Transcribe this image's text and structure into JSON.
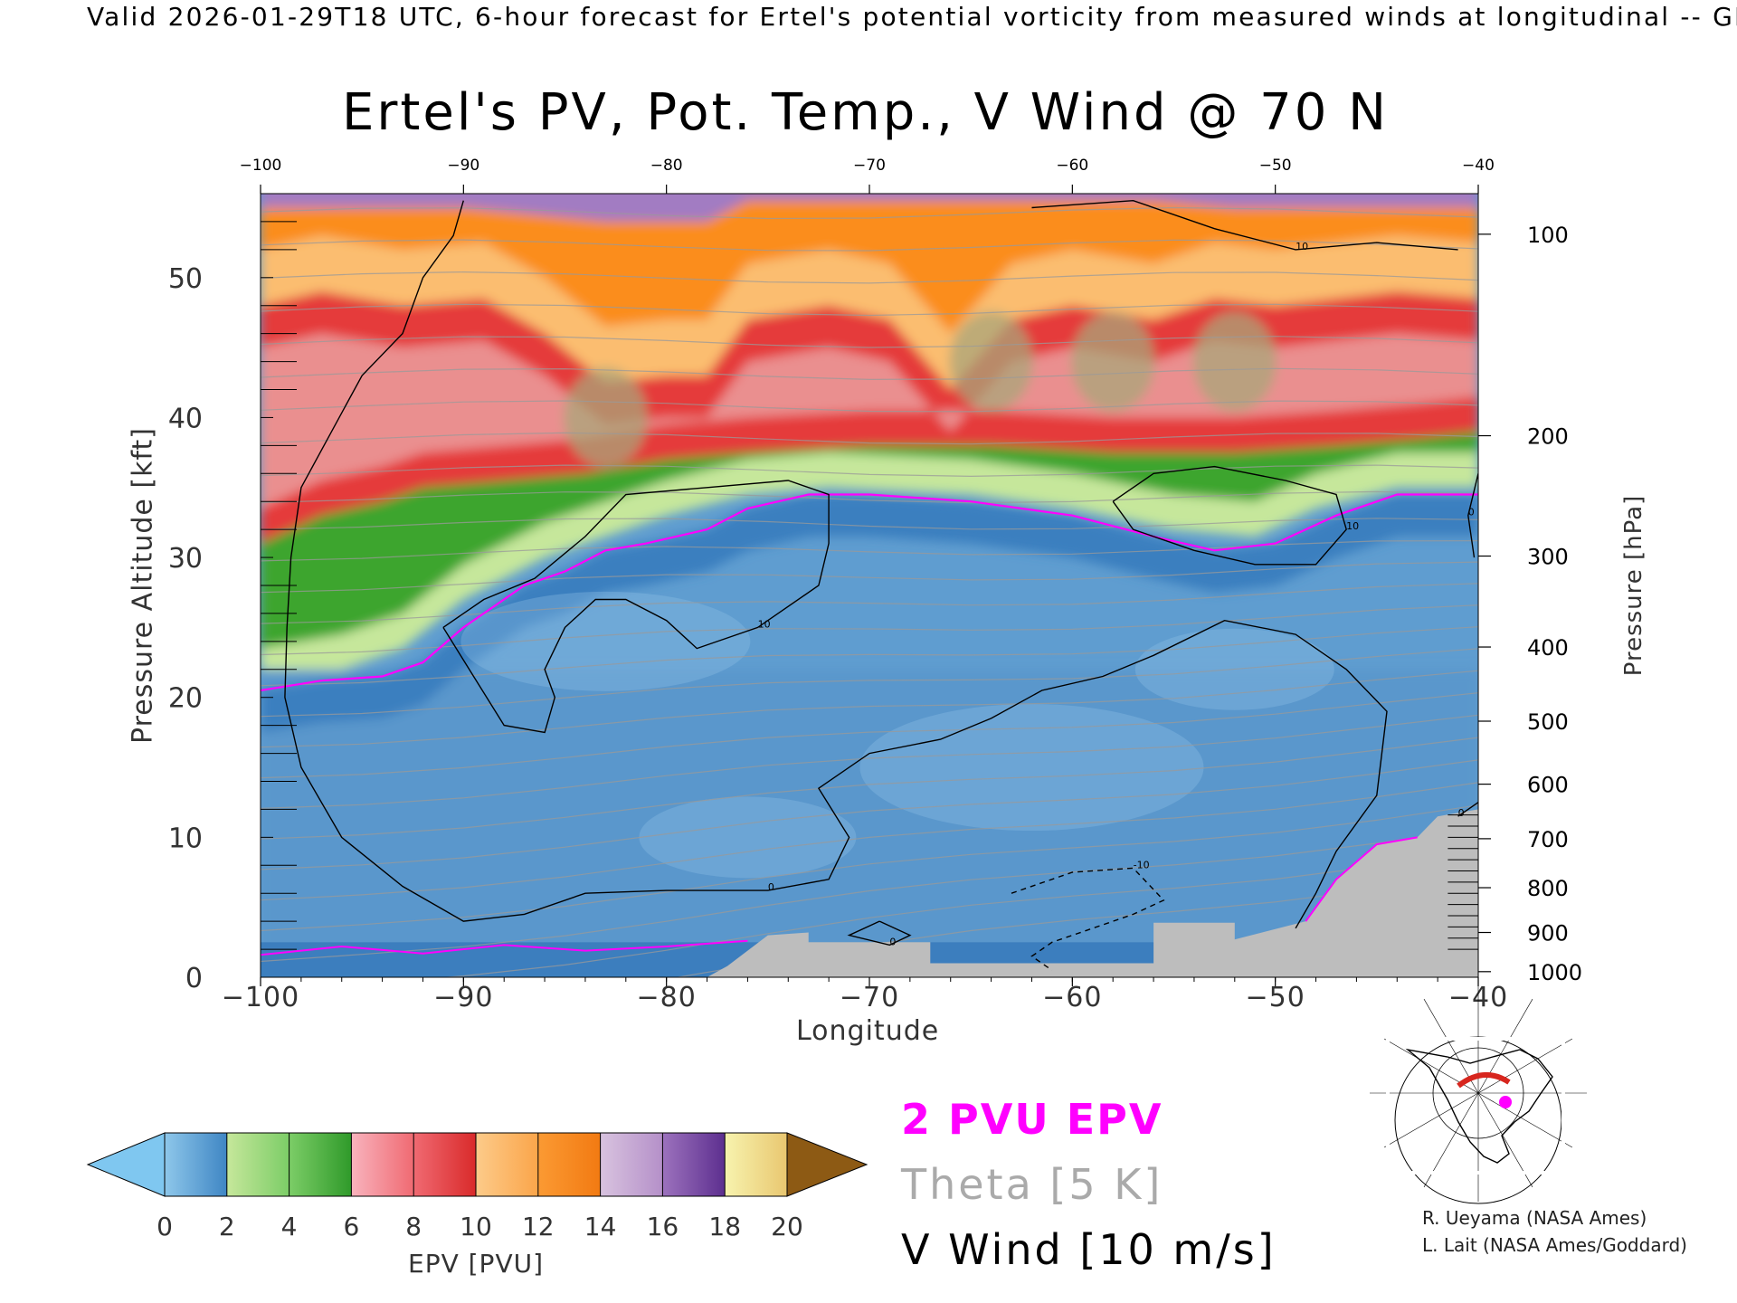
{
  "header": "Valid 2026-01-29T18 UTC, 6-hour forecast for Ertel's potential vorticity from measured winds at longitudinal -- GEOS",
  "title": "Ertel's PV, Pot. Temp., V Wind @ 70 N",
  "chart_data": {
    "type": "heatmap",
    "title": "Ertel's PV, Pot. Temp., V Wind @ 70 N",
    "xlabel": "Longitude",
    "ylabel_left": "Pressure Altitude [kft]",
    "ylabel_right": "Pressure [hPa]",
    "xlim": [
      -100,
      -40
    ],
    "ylim": [
      0,
      56
    ],
    "x_ticks": [
      -100,
      -90,
      -80,
      -70,
      -60,
      -50,
      -40
    ],
    "x_tick_labels_top": [
      "−100",
      "−90",
      "−80",
      "−70",
      "−60",
      "−50",
      "−40"
    ],
    "x_tick_labels_bottom": [
      "−100",
      "−90",
      "−80",
      "−70",
      "−60",
      "−50",
      "−40"
    ],
    "y_ticks_left": [
      0,
      10,
      20,
      30,
      40,
      50
    ],
    "pressure_ticks": [
      {
        "hpa": 100,
        "label": "100",
        "kft": 53.1
      },
      {
        "hpa": 200,
        "label": "200",
        "kft": 38.7
      },
      {
        "hpa": 300,
        "label": "300",
        "kft": 30.1
      },
      {
        "hpa": 400,
        "label": "400",
        "kft": 23.6
      },
      {
        "hpa": 500,
        "label": "500",
        "kft": 18.3
      },
      {
        "hpa": 600,
        "label": "600",
        "kft": 13.8
      },
      {
        "hpa": 700,
        "label": "700",
        "kft": 9.9
      },
      {
        "hpa": 800,
        "label": "800",
        "kft": 6.4
      },
      {
        "hpa": 900,
        "label": "900",
        "kft": 3.2
      },
      {
        "hpa": 1000,
        "label": "1000",
        "kft": 0.4
      }
    ],
    "two_pvu_line": [
      [
        -100,
        20.5
      ],
      [
        -97,
        21.2
      ],
      [
        -94,
        21.5
      ],
      [
        -92,
        22.5
      ],
      [
        -90,
        25
      ],
      [
        -87,
        28
      ],
      [
        -85,
        29
      ],
      [
        -83,
        30.5
      ],
      [
        -81,
        31
      ],
      [
        -78,
        32
      ],
      [
        -76,
        33.5
      ],
      [
        -73,
        34.5
      ],
      [
        -70,
        34.5
      ],
      [
        -65,
        34
      ],
      [
        -60,
        33
      ],
      [
        -56,
        31.5
      ],
      [
        -53,
        30.5
      ],
      [
        -50,
        31
      ],
      [
        -47,
        33
      ],
      [
        -44,
        34.5
      ],
      [
        -40,
        34.5
      ]
    ],
    "tropopause_fill": [
      [
        -100,
        21
      ],
      [
        -96,
        22
      ],
      [
        -93,
        23.5
      ],
      [
        -90,
        27
      ],
      [
        -86,
        30
      ],
      [
        -83,
        31.5
      ],
      [
        -80,
        33
      ],
      [
        -76,
        34.5
      ],
      [
        -72,
        35
      ],
      [
        -65,
        34.5
      ],
      [
        -60,
        33.5
      ],
      [
        -55,
        32
      ],
      [
        -51,
        31.5
      ],
      [
        -48,
        33.5
      ],
      [
        -44,
        35
      ],
      [
        -40,
        35
      ]
    ],
    "green_top": [
      [
        -100,
        31
      ],
      [
        -97,
        33
      ],
      [
        -94,
        34
      ],
      [
        -92,
        35
      ],
      [
        -88,
        35.5
      ],
      [
        -84,
        36
      ],
      [
        -80,
        37
      ],
      [
        -76,
        37.5
      ],
      [
        -70,
        38
      ],
      [
        -64,
        38
      ],
      [
        -58,
        37.5
      ],
      [
        -52,
        37.5
      ],
      [
        -47,
        38
      ],
      [
        -43,
        38.5
      ],
      [
        -40,
        39
      ]
    ],
    "red_top": [
      [
        -100,
        52
      ],
      [
        -97,
        53
      ],
      [
        -93,
        52
      ],
      [
        -89,
        52.5
      ],
      [
        -86,
        50
      ],
      [
        -83,
        46.5
      ],
      [
        -80,
        47
      ],
      [
        -78,
        47
      ],
      [
        -76,
        51
      ],
      [
        -72,
        52
      ],
      [
        -69,
        51
      ],
      [
        -66,
        46
      ],
      [
        -63,
        51
      ],
      [
        -60,
        52
      ],
      [
        -56,
        51
      ],
      [
        -53,
        52.5
      ],
      [
        -50,
        52
      ],
      [
        -47,
        52.5
      ],
      [
        -44,
        53
      ],
      [
        -40,
        52.5
      ]
    ],
    "orange_top": [
      [
        -100,
        55
      ],
      [
        -90,
        55
      ],
      [
        -83,
        54
      ],
      [
        -78,
        54
      ],
      [
        -76,
        55.5
      ],
      [
        -66,
        55.5
      ],
      [
        -56,
        55.5
      ],
      [
        -52,
        55
      ],
      [
        -40,
        55
      ]
    ],
    "terrain": [
      [
        -100,
        0
      ],
      [
        -78,
        0
      ],
      [
        -77,
        0.8
      ],
      [
        -75,
        3
      ],
      [
        -73,
        3.2
      ],
      [
        -73,
        2.5
      ],
      [
        -67,
        2.5
      ],
      [
        -67,
        1
      ],
      [
        -56,
        1
      ],
      [
        -56,
        3.9
      ],
      [
        -52,
        3.9
      ],
      [
        -52,
        2.7
      ],
      [
        -48.5,
        4
      ],
      [
        -47,
        7
      ],
      [
        -45,
        9.5
      ],
      [
        -43,
        10
      ],
      [
        -42,
        11.5
      ],
      [
        -40,
        12
      ],
      [
        -40,
        0
      ]
    ],
    "v_wind_contours": [
      {
        "label": "0",
        "points": [
          [
            -90,
            55.5
          ],
          [
            -90.5,
            53
          ],
          [
            -92,
            50
          ],
          [
            -93,
            46
          ],
          [
            -95,
            43
          ],
          [
            -96.5,
            39
          ],
          [
            -98,
            35
          ],
          [
            -98.5,
            30
          ],
          [
            -98.7,
            25
          ],
          [
            -98.8,
            20
          ],
          [
            -98,
            15
          ],
          [
            -96,
            10
          ],
          [
            -93,
            6.5
          ],
          [
            -90,
            4
          ],
          [
            -87,
            4.5
          ],
          [
            -84,
            6
          ],
          [
            -80,
            6.2
          ],
          [
            -75,
            6.2
          ],
          [
            -72,
            7
          ],
          [
            -71,
            10
          ],
          [
            -72.5,
            13.5
          ],
          [
            -70,
            16
          ],
          [
            -66.5,
            17
          ],
          [
            -64,
            18.5
          ],
          [
            -61.5,
            20.5
          ],
          [
            -58.5,
            21.5
          ],
          [
            -56,
            23
          ],
          [
            -52.5,
            25.5
          ],
          [
            -49,
            24.5
          ],
          [
            -46.5,
            22
          ],
          [
            -44.5,
            19
          ],
          [
            -45,
            13
          ],
          [
            -47,
            9
          ],
          [
            -48,
            6
          ],
          [
            -49,
            3.5
          ]
        ]
      },
      {
        "label": "10",
        "points": [
          [
            -91,
            25
          ],
          [
            -89.5,
            21.5
          ],
          [
            -88,
            18
          ],
          [
            -86,
            17.5
          ],
          [
            -85.5,
            20
          ],
          [
            -86,
            22
          ],
          [
            -85,
            25
          ],
          [
            -83.5,
            27
          ],
          [
            -82,
            27
          ],
          [
            -80,
            25.5
          ],
          [
            -78.5,
            23.5
          ],
          [
            -75.5,
            25
          ],
          [
            -72.5,
            28
          ],
          [
            -72,
            31
          ],
          [
            -72,
            34.5
          ],
          [
            -74,
            35.5
          ],
          [
            -78,
            35
          ],
          [
            -82,
            34.5
          ],
          [
            -84,
            31.5
          ],
          [
            -86.5,
            28.5
          ],
          [
            -89,
            27
          ],
          [
            -91,
            25
          ]
        ]
      },
      {
        "label": "10",
        "points": [
          [
            -58,
            34
          ],
          [
            -56,
            36
          ],
          [
            -53,
            36.5
          ],
          [
            -49.5,
            35.5
          ],
          [
            -47,
            34.5
          ],
          [
            -46.5,
            32
          ],
          [
            -48,
            29.5
          ],
          [
            -51,
            29.5
          ],
          [
            -54,
            30.5
          ],
          [
            -57,
            32
          ],
          [
            -58,
            34
          ]
        ]
      },
      {
        "label": "10",
        "points": [
          [
            -62,
            55
          ],
          [
            -57,
            55.5
          ],
          [
            -53,
            53.5
          ],
          [
            -49,
            52
          ],
          [
            -45,
            52.5
          ],
          [
            -41,
            52
          ]
        ]
      },
      {
        "label": "0",
        "points": [
          [
            -40,
            36
          ],
          [
            -40.5,
            33
          ],
          [
            -40.2,
            30
          ]
        ]
      },
      {
        "label": "0",
        "points": [
          [
            -40,
            12.5
          ],
          [
            -41,
            11.5
          ]
        ]
      },
      {
        "label": "0",
        "points": [
          [
            -69.5,
            4
          ],
          [
            -71,
            3
          ],
          [
            -69,
            2.3
          ],
          [
            -68,
            3
          ],
          [
            -69.5,
            4
          ]
        ]
      }
    ],
    "v_wind_dashed": [
      {
        "label": "-10",
        "points": [
          [
            -63,
            6
          ],
          [
            -60,
            7.5
          ],
          [
            -57,
            7.8
          ],
          [
            -55.5,
            5.5
          ],
          [
            -57,
            4.5
          ],
          [
            -59,
            3.5
          ],
          [
            -61,
            2.5
          ],
          [
            -62,
            1.5
          ],
          [
            -61,
            0.5
          ]
        ]
      }
    ],
    "epv_colorbar": {
      "label": "EPV [PVU]",
      "ticks": [
        "0",
        "2",
        "4",
        "6",
        "8",
        "10",
        "12",
        "14",
        "16",
        "18",
        "20"
      ],
      "colors": [
        "#8ec7ea",
        "#3f86c4",
        "#c6e79b",
        "#7ccd67",
        "#3ca52f",
        "#f59bab",
        "#f06a72",
        "#e53b3b",
        "#fbbd6f",
        "#fb8d1f",
        "#c7a5d4",
        "#6d3f9c",
        "#f6f09a",
        "#8d5a14"
      ]
    },
    "legend": [
      {
        "label": "2 PVU EPV",
        "color": "#ff00ff"
      },
      {
        "label": "Theta [5 K]",
        "color": "#aaaaaa"
      },
      {
        "label": "V Wind [10 m/s]",
        "color": "#000000"
      }
    ]
  },
  "credits": [
    "R. Ueyama (NASA Ames)",
    "L. Lait (NASA Ames/Goddard)"
  ]
}
